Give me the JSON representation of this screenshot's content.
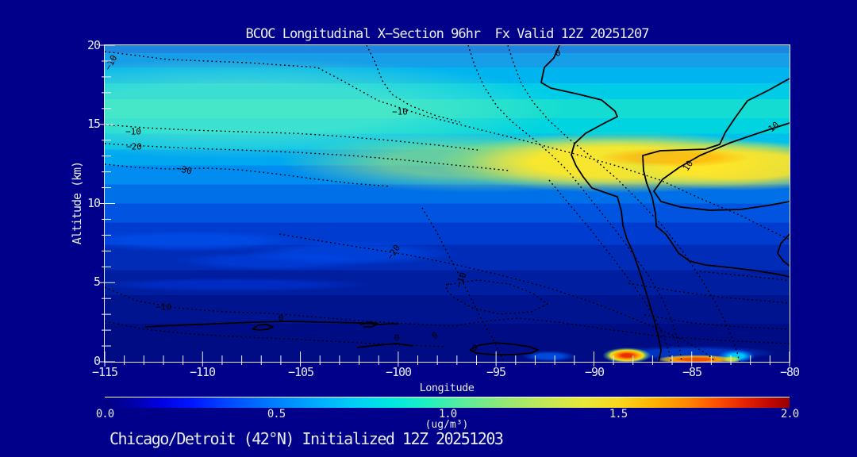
{
  "page": {
    "background": "#00008B"
  },
  "header": {
    "title": "BCOC Longitudinal X−Section 96hr  Fx Valid 12Z 20251207"
  },
  "footer": {
    "subtitle": "Chicago/Detroit (42°N) Initialized 12Z 20251203"
  },
  "axes": {
    "y": {
      "label": "Altitude (km)",
      "min": 0,
      "max": 20,
      "major_every": 5,
      "ticks": [
        "20",
        "15",
        "10",
        "5",
        "0"
      ]
    },
    "x": {
      "label": "Longitude",
      "min": -115,
      "max": -80,
      "major_every": 5,
      "ticks": [
        "−115",
        "−110",
        "−105",
        "−100",
        "−95",
        "−90",
        "−85",
        "−80"
      ]
    }
  },
  "colorbar": {
    "min": 0.0,
    "max": 2.0,
    "units": "(ug/m³)",
    "ticks": [
      "0.0",
      "0.5",
      "1.0",
      "1.5",
      "2.0"
    ],
    "gradient_hint": [
      "#000080",
      "#0048FF",
      "#00CCF8",
      "#58ECA0",
      "#E8E838",
      "#FFB400",
      "#FF5500",
      "#980000"
    ]
  },
  "contour_labels": [
    {
      "text": "−10"
    },
    {
      "text": "−10"
    },
    {
      "text": "−20"
    },
    {
      "text": "−30"
    },
    {
      "text": "−10"
    },
    {
      "text": "0"
    },
    {
      "text": "10"
    },
    {
      "text": "10"
    },
    {
      "text": "−20"
    },
    {
      "text": "−10"
    },
    {
      "text": "−10"
    },
    {
      "text": "0"
    },
    {
      "text": "0"
    },
    {
      "text": "0"
    },
    {
      "text": "0"
    }
  ],
  "chart_data": {
    "type": "heatmap",
    "title": "BCOC Longitudinal X-Section 96hr  Fx Valid 12Z 20251207",
    "subtitle": "Chicago/Detroit (42°N) Initialized 12Z 20251203",
    "xlabel": "Longitude",
    "ylabel": "Altitude (km)",
    "xlim": [
      -115,
      -80
    ],
    "ylim": [
      0,
      20
    ],
    "colorbar": {
      "min": 0.0,
      "max": 2.0,
      "units": "ug/m3",
      "ticks": [
        0.0,
        0.5,
        1.0,
        1.5,
        2.0
      ],
      "palette": "blue-cyan-green-yellow-orange-red"
    },
    "fill_field": "BCOC concentration (ug/m3), filled contours",
    "longitudes": [
      -115,
      -110,
      -105,
      -100,
      -95,
      -90,
      -85,
      -80
    ],
    "altitudes_km": [
      0,
      2,
      4,
      6,
      8,
      10,
      12,
      14,
      16,
      18,
      20
    ],
    "values_ug_m3_rows_by_altitude": [
      [
        0.05,
        0.05,
        0.05,
        0.08,
        0.1,
        0.6,
        1.5,
        0.3
      ],
      [
        0.1,
        0.1,
        0.1,
        0.12,
        0.12,
        0.15,
        0.2,
        0.2
      ],
      [
        0.15,
        0.15,
        0.15,
        0.2,
        0.2,
        0.2,
        0.25,
        0.25
      ],
      [
        0.2,
        0.2,
        0.25,
        0.25,
        0.3,
        0.3,
        0.3,
        0.35
      ],
      [
        0.3,
        0.3,
        0.3,
        0.35,
        0.35,
        0.4,
        0.4,
        0.45
      ],
      [
        0.45,
        0.45,
        0.45,
        0.5,
        0.5,
        0.55,
        0.6,
        0.65
      ],
      [
        0.6,
        0.65,
        0.7,
        0.8,
        0.9,
        1.1,
        1.2,
        1.15
      ],
      [
        0.75,
        0.8,
        0.85,
        0.9,
        1.0,
        1.0,
        1.0,
        1.05
      ],
      [
        0.8,
        0.8,
        0.8,
        0.8,
        0.85,
        0.85,
        0.85,
        0.9
      ],
      [
        0.7,
        0.7,
        0.7,
        0.7,
        0.7,
        0.7,
        0.75,
        0.8
      ],
      [
        0.55,
        0.55,
        0.55,
        0.55,
        0.55,
        0.55,
        0.6,
        0.6
      ]
    ],
    "contour_overlay": {
      "dotted_levels": [
        -30,
        -20,
        -10
      ],
      "solid_levels": [
        0,
        10
      ],
      "description": "Secondary field drawn as black line contours; dotted lines are negative values, solid lines zero/positive. Max solid cell (10) over -90 to -80 near 12-14 km."
    },
    "notable_features": [
      "Yellow/orange maximum (~1.2-1.4 ug/m3) at 12-14 km between -95 and -80",
      "Cyan/aquamarine layer (~0.7-0.9) from 14-18 km across all longitudes",
      "Dark navy low values below 8 km deepening toward surface",
      "Surface plume spikes near -88 to -83 reaching red (~1.8-2.0)"
    ]
  }
}
